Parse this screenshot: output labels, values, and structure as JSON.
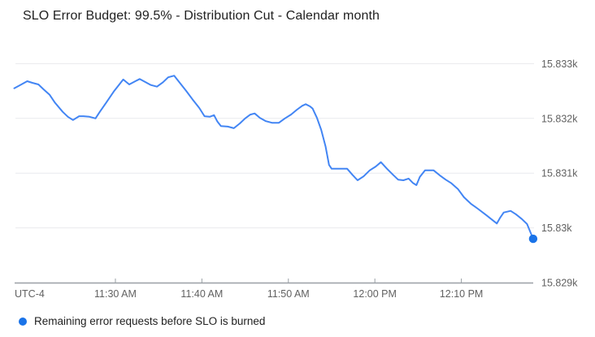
{
  "page": {
    "title": "SLO Error Budget: 99.5% - Distribution Cut - Calendar month"
  },
  "legend": {
    "label": "Remaining error requests before SLO is burned",
    "marker_color": "#1a73e8"
  },
  "chart_data": {
    "type": "line",
    "title": "SLO Error Budget: 99.5% - Distribution Cut - Calendar month",
    "grid": "horizontal-only",
    "legend_position": "bottom-left",
    "colors": {
      "line": "#4285f4",
      "end_dot": "#1a73e8",
      "gridline": "#e9eaed",
      "axis": "#9aa0a6",
      "tick_text": "#616161"
    },
    "x_axis": {
      "utc_label": "UTC-4",
      "unit": "minutes (relative time axis)",
      "range": [
        0,
        60.5
      ],
      "ticks": [
        {
          "t": 12,
          "label": "11:30 AM"
        },
        {
          "t": 22,
          "label": "11:40 AM"
        },
        {
          "t": 32,
          "label": "11:50 AM"
        },
        {
          "t": 42,
          "label": "12:00 PM"
        },
        {
          "t": 52,
          "label": "12:10 PM"
        }
      ]
    },
    "y_axis": {
      "range": [
        15829,
        15833.2
      ],
      "ticks": [
        {
          "v": 15829,
          "label": "15.829k"
        },
        {
          "v": 15830,
          "label": "15.83k"
        },
        {
          "v": 15831,
          "label": "15.831k"
        },
        {
          "v": 15832,
          "label": "15.832k"
        },
        {
          "v": 15833,
          "label": "15.833k"
        }
      ]
    },
    "series": [
      {
        "name": "Remaining error requests before SLO is burned",
        "color": "#4285f4",
        "end_dot_color": "#1a73e8",
        "points": [
          [
            0.3,
            15832.55
          ],
          [
            1.0,
            15832.61
          ],
          [
            1.8,
            15832.68
          ],
          [
            2.4,
            15832.65
          ],
          [
            3.1,
            15832.62
          ],
          [
            3.7,
            15832.53
          ],
          [
            4.4,
            15832.43
          ],
          [
            5.0,
            15832.29
          ],
          [
            5.9,
            15832.12
          ],
          [
            6.5,
            15832.03
          ],
          [
            7.1,
            15831.97
          ],
          [
            7.8,
            15832.04
          ],
          [
            8.3,
            15832.04
          ],
          [
            9.0,
            15832.03
          ],
          [
            9.7,
            15832.0
          ],
          [
            10.2,
            15832.12
          ],
          [
            10.9,
            15832.28
          ],
          [
            11.8,
            15832.49
          ],
          [
            12.4,
            15832.61
          ],
          [
            12.9,
            15832.71
          ],
          [
            13.6,
            15832.62
          ],
          [
            14.3,
            15832.68
          ],
          [
            14.8,
            15832.72
          ],
          [
            15.5,
            15832.66
          ],
          [
            16.1,
            15832.61
          ],
          [
            16.8,
            15832.58
          ],
          [
            17.5,
            15832.66
          ],
          [
            18.1,
            15832.75
          ],
          [
            18.8,
            15832.78
          ],
          [
            19.5,
            15832.64
          ],
          [
            20.2,
            15832.5
          ],
          [
            20.9,
            15832.35
          ],
          [
            21.7,
            15832.19
          ],
          [
            22.3,
            15832.04
          ],
          [
            22.9,
            15832.03
          ],
          [
            23.4,
            15832.06
          ],
          [
            23.8,
            15831.94
          ],
          [
            24.2,
            15831.86
          ],
          [
            25.0,
            15831.85
          ],
          [
            25.7,
            15831.82
          ],
          [
            26.4,
            15831.91
          ],
          [
            27.0,
            15832.0
          ],
          [
            27.6,
            15832.07
          ],
          [
            28.1,
            15832.09
          ],
          [
            28.7,
            15832.01
          ],
          [
            29.4,
            15831.95
          ],
          [
            30.1,
            15831.92
          ],
          [
            30.9,
            15831.92
          ],
          [
            31.6,
            15832.0
          ],
          [
            32.3,
            15832.07
          ],
          [
            33.0,
            15832.16
          ],
          [
            33.6,
            15832.23
          ],
          [
            34.0,
            15832.26
          ],
          [
            34.5,
            15832.22
          ],
          [
            34.8,
            15832.18
          ],
          [
            35.3,
            15832.01
          ],
          [
            35.8,
            15831.79
          ],
          [
            36.3,
            15831.49
          ],
          [
            36.7,
            15831.15
          ],
          [
            37.0,
            15831.08
          ],
          [
            37.7,
            15831.08
          ],
          [
            38.2,
            15831.08
          ],
          [
            38.8,
            15831.08
          ],
          [
            39.4,
            15830.97
          ],
          [
            40.0,
            15830.87
          ],
          [
            40.7,
            15830.94
          ],
          [
            41.4,
            15831.05
          ],
          [
            42.1,
            15831.12
          ],
          [
            42.7,
            15831.2
          ],
          [
            43.4,
            15831.08
          ],
          [
            44.1,
            15830.97
          ],
          [
            44.7,
            15830.88
          ],
          [
            45.3,
            15830.87
          ],
          [
            45.9,
            15830.9
          ],
          [
            46.4,
            15830.82
          ],
          [
            46.8,
            15830.78
          ],
          [
            47.2,
            15830.93
          ],
          [
            47.8,
            15831.05
          ],
          [
            48.3,
            15831.05
          ],
          [
            48.8,
            15831.05
          ],
          [
            49.5,
            15830.96
          ],
          [
            50.2,
            15830.88
          ],
          [
            50.8,
            15830.82
          ],
          [
            51.6,
            15830.71
          ],
          [
            52.3,
            15830.56
          ],
          [
            53.1,
            15830.44
          ],
          [
            53.9,
            15830.35
          ],
          [
            54.9,
            15830.23
          ],
          [
            55.7,
            15830.13
          ],
          [
            56.1,
            15830.08
          ],
          [
            56.5,
            15830.19
          ],
          [
            56.9,
            15830.28
          ],
          [
            57.7,
            15830.31
          ],
          [
            58.3,
            15830.25
          ],
          [
            59.0,
            15830.16
          ],
          [
            59.6,
            15830.07
          ],
          [
            60.3,
            15829.8
          ]
        ]
      }
    ]
  }
}
